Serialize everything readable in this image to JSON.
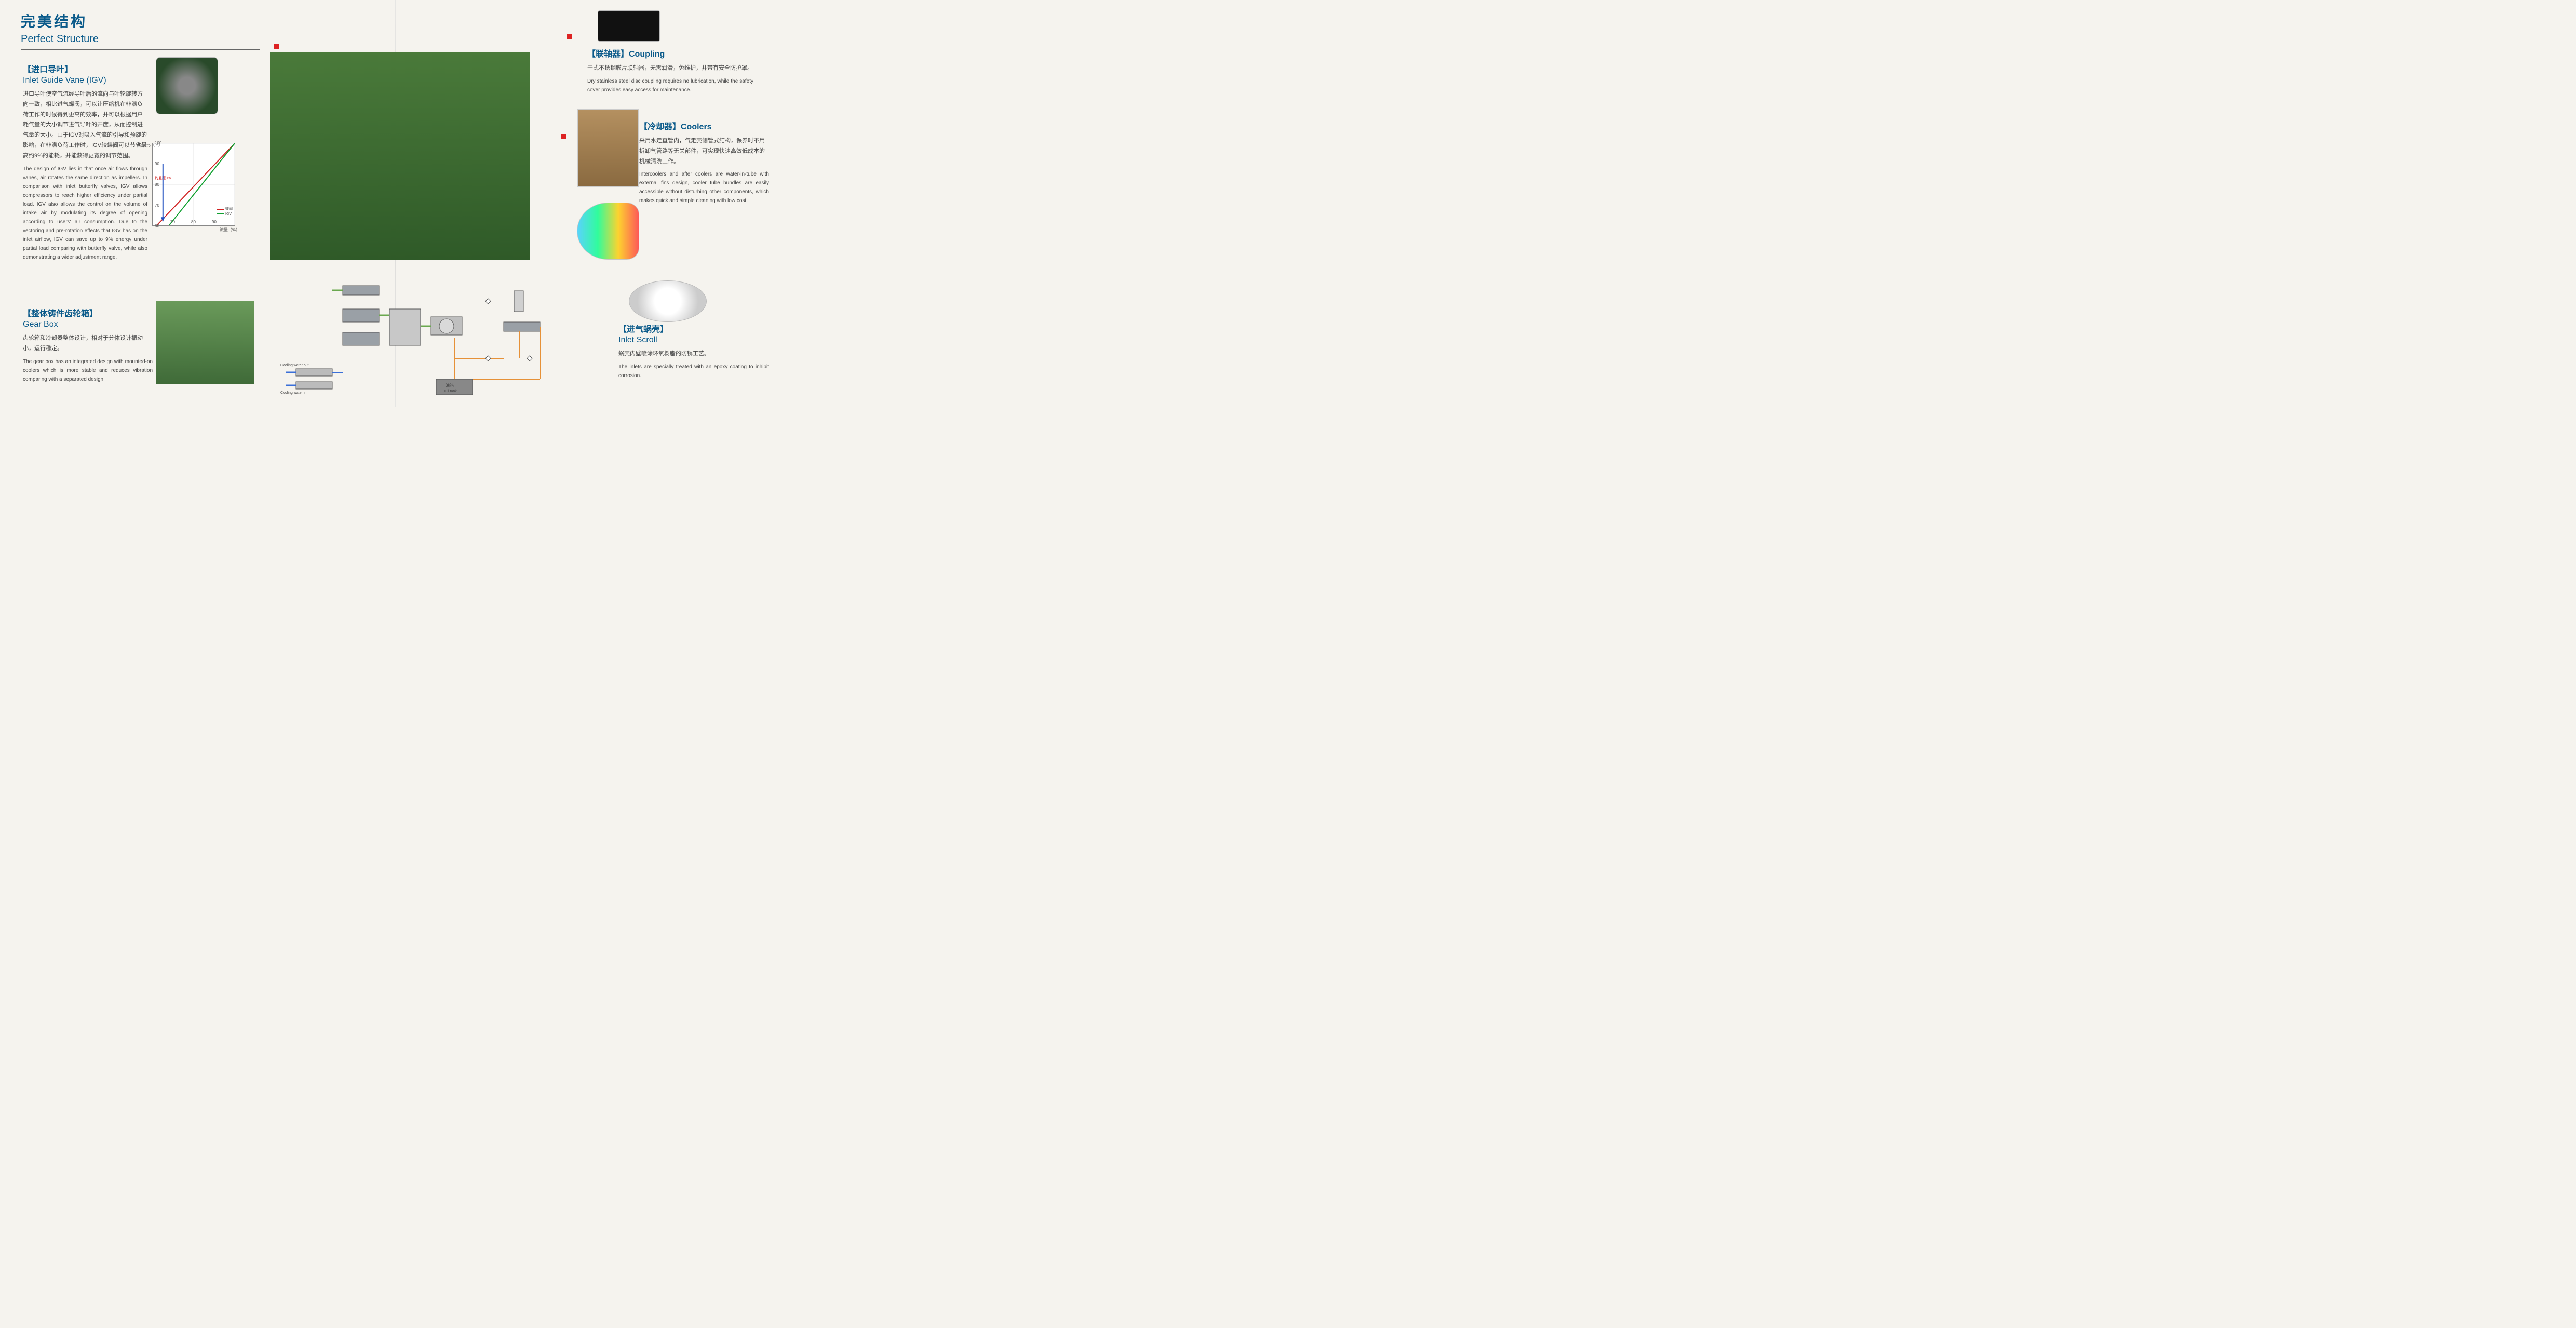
{
  "header": {
    "title_cn": "完美结构",
    "title_en": "Perfect Structure"
  },
  "igv": {
    "title_cn": "【进口导叶】",
    "title_en": "Inlet Guide Vane (IGV)",
    "body_cn": "进口导叶使空气流经导叶后的流向与叶轮旋转方向一致，相比进气蝶阀，可以让压缩机在非满负荷工作的时候得到更高的效率，并可以根据用户耗气量的大小调节进气导叶的开度，从而控制进气量的大小。由于IGV对吸入气流的引导和预旋的影响，在非满负荷工作时，IGV较蝶阀可以节省最高约9%的能耗，并能获得更宽的调节范围。",
    "body_en": "The design of IGV lies in that once air flows through vanes, air rotates the same direction as impellers. In comparison with inlet butterfly valves, IGV allows compressors to reach higher efficiency under partial load. IGV also allows the control on the volume of intake air by modulating its degree of opening according to users' air consumption. Due to the vectoring and pre-rotation effects that IGV has on the inlet airflow, IGV can save up to 9% energy under partial load comparing with butterfly valve, while also demonstrating a wider adjustment range."
  },
  "gearbox": {
    "title_cn": "【整体铸件齿轮箱】",
    "title_en": "Gear Box",
    "body_cn": "齿轮箱和冷却器整体设计，相对于分体设计振动小，运行稳定。",
    "body_en": "The gear box has an integrated design with mounted-on coolers which is more stable and reduces vibration comparing with a separated design."
  },
  "coupling": {
    "title_cn": "【联轴器】Coupling",
    "body_cn": "干式不锈钢膜片联轴器，无需润滑，免维护，并带有安全防护罩。",
    "body_en": "Dry stainless steel disc coupling requires no lubrication, while the safety cover provides easy access for maintenance."
  },
  "coolers": {
    "title_cn": "【冷却器】Coolers",
    "body_cn": "采用水走直管内，气走壳侧管式结构，保养时不用拆卸气管路等无关部件，可实现快速高效低成本的机械清洗工作。",
    "body_en": "Intercoolers and after coolers are water-in-tube with external fins design, cooler tube bundles are easily accessible without disturbing other components, which makes quick and simple cleaning with low cost."
  },
  "inlet_scroll": {
    "title_cn": "【进气蜗壳】",
    "title_en": "Inlet Scroll",
    "body_cn": "蜗壳内壁喷涂环氧树脂的防锈工艺。",
    "body_en": "The inlets are specially treated with an epoxy coating to inhibit corrosion."
  },
  "chart": {
    "type": "line",
    "ylabel": "动力比（%）",
    "xlabel": "流量（%）",
    "xlim": [
      60,
      100
    ],
    "ylim": [
      60,
      100
    ],
    "xtick_step": 10,
    "ytick_step": 10,
    "grid_color": "#cccccc",
    "background_color": "#ffffff",
    "note": "约差距9%",
    "series": [
      {
        "name": "蝶阀",
        "color": "#d02020",
        "points": [
          [
            62,
            60
          ],
          [
            100,
            100
          ]
        ]
      },
      {
        "name": "IGV",
        "color": "#10a030",
        "points": [
          [
            68,
            60
          ],
          [
            100,
            100
          ]
        ]
      }
    ],
    "arrow": {
      "x": 65,
      "y_from": 90,
      "y_to": 62,
      "color": "#2050c0"
    },
    "legend_pos": "bottom-right",
    "line_width": 2
  },
  "schematic": {
    "labels": {
      "cooling_water_out": "Cooling water out",
      "cooling_water_in": "Cooling water in",
      "oil_tank_cn": "油箱",
      "oil_tank_en": "Oil tank"
    },
    "pipe_colors": {
      "air": "#6aa84f",
      "water_blue": "#3a6fd8",
      "oil_orange": "#e69138"
    },
    "component_fill": "#9aa0a6",
    "component_stroke": "#555555"
  },
  "colors": {
    "heading": "#0a5a8a",
    "marker": "#d22222",
    "machine_green": "#3f6a38"
  }
}
